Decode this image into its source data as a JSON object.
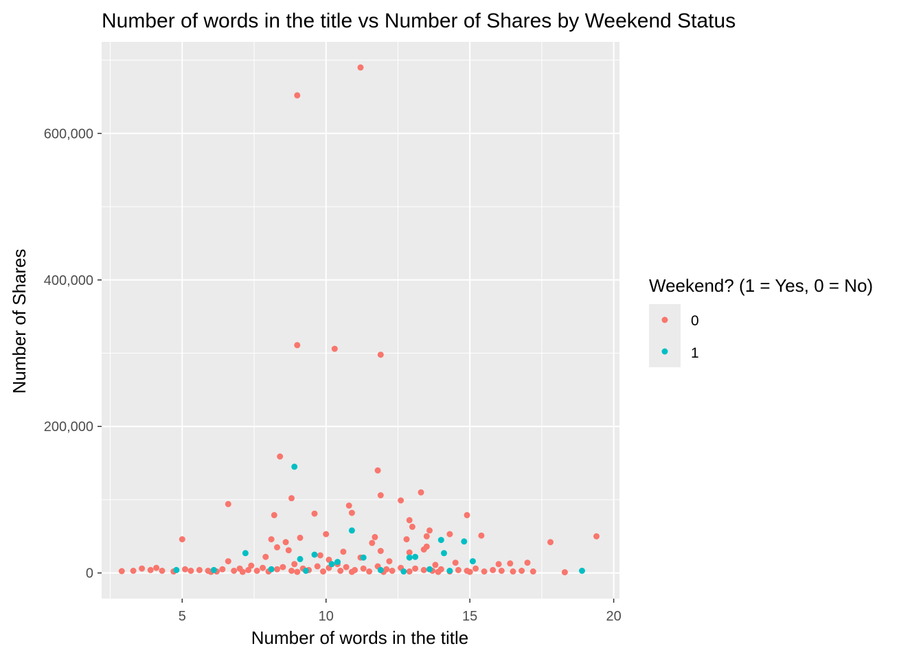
{
  "chart_data": {
    "type": "scatter",
    "title": "Number of words in the title vs Number of Shares by Weekend Status",
    "xlabel": "Number of words in the title",
    "ylabel": "Number of Shares",
    "xlim": [
      2.2,
      20.2
    ],
    "ylim": [
      -35000,
      725000
    ],
    "x_ticks": [
      5,
      10,
      15,
      20
    ],
    "x_tick_labels": [
      "5",
      "10",
      "15",
      "20"
    ],
    "y_ticks": [
      0,
      200000,
      400000,
      600000
    ],
    "y_tick_labels": [
      "0",
      "200,000",
      "400,000",
      "600,000"
    ],
    "grid": true,
    "legend": {
      "title": "Weekend? (1 = Yes, 0 = No)",
      "placement": "right",
      "entries": [
        {
          "label": "0",
          "color": "#F8766D"
        },
        {
          "label": "1",
          "color": "#00BFC4"
        }
      ]
    },
    "series": [
      {
        "name": "0",
        "color": "#F8766D",
        "points": [
          [
            11.2,
            690000
          ],
          [
            9.0,
            652000
          ],
          [
            9.0,
            311000
          ],
          [
            10.3,
            306000
          ],
          [
            11.9,
            298000
          ],
          [
            8.4,
            159000
          ],
          [
            11.8,
            140000
          ],
          [
            13.3,
            110000
          ],
          [
            11.9,
            106000
          ],
          [
            8.8,
            102000
          ],
          [
            12.6,
            99000
          ],
          [
            6.6,
            94000
          ],
          [
            10.8,
            92000
          ],
          [
            10.9,
            82000
          ],
          [
            9.6,
            81000
          ],
          [
            8.2,
            79000
          ],
          [
            14.9,
            79000
          ],
          [
            12.9,
            72000
          ],
          [
            13.0,
            63000
          ],
          [
            13.6,
            58000
          ],
          [
            10.0,
            53000
          ],
          [
            14.3,
            53000
          ],
          [
            15.4,
            51000
          ],
          [
            19.4,
            50000
          ],
          [
            13.5,
            50000
          ],
          [
            11.7,
            49000
          ],
          [
            9.1,
            48000
          ],
          [
            5.0,
            46000
          ],
          [
            8.1,
            46000
          ],
          [
            12.8,
            46000
          ],
          [
            17.8,
            42000
          ],
          [
            8.6,
            42000
          ],
          [
            11.6,
            41000
          ],
          [
            13.5,
            36000
          ],
          [
            8.3,
            35000
          ],
          [
            13.4,
            32000
          ],
          [
            11.9,
            30000
          ],
          [
            10.6,
            29000
          ],
          [
            12.9,
            28000
          ],
          [
            8.7,
            31000
          ],
          [
            7.9,
            22000
          ],
          [
            9.8,
            24000
          ],
          [
            10.1,
            18000
          ],
          [
            11.2,
            21000
          ],
          [
            12.2,
            16000
          ],
          [
            14.5,
            14000
          ],
          [
            16.0,
            12000
          ],
          [
            16.4,
            13000
          ],
          [
            17.0,
            14000
          ],
          [
            6.6,
            16000
          ],
          [
            7.4,
            10000
          ],
          [
            8.9,
            12000
          ],
          [
            10.4,
            12000
          ],
          [
            13.8,
            11000
          ],
          [
            2.9,
            2500
          ],
          [
            3.3,
            3000
          ],
          [
            3.6,
            6000
          ],
          [
            3.9,
            4000
          ],
          [
            4.1,
            7000
          ],
          [
            4.3,
            3000
          ],
          [
            4.7,
            2000
          ],
          [
            5.1,
            5000
          ],
          [
            5.3,
            3000
          ],
          [
            5.6,
            4000
          ],
          [
            5.9,
            3000
          ],
          [
            6.2,
            2000
          ],
          [
            6.4,
            5000
          ],
          [
            6.8,
            3000
          ],
          [
            7.0,
            6000
          ],
          [
            7.3,
            4000
          ],
          [
            7.6,
            3000
          ],
          [
            7.8,
            7000
          ],
          [
            8.0,
            2000
          ],
          [
            8.3,
            5000
          ],
          [
            8.5,
            8000
          ],
          [
            8.8,
            3000
          ],
          [
            9.2,
            6000
          ],
          [
            9.4,
            4000
          ],
          [
            9.7,
            9000
          ],
          [
            9.9,
            2000
          ],
          [
            10.1,
            7000
          ],
          [
            10.5,
            3000
          ],
          [
            10.7,
            8000
          ],
          [
            11.0,
            4000
          ],
          [
            11.3,
            6000
          ],
          [
            11.5,
            2000
          ],
          [
            11.8,
            9000
          ],
          [
            12.1,
            5000
          ],
          [
            12.3,
            3000
          ],
          [
            12.6,
            7000
          ],
          [
            12.9,
            2000
          ],
          [
            13.1,
            6000
          ],
          [
            13.4,
            4000
          ],
          [
            13.7,
            3000
          ],
          [
            14.0,
            5000
          ],
          [
            14.3,
            2000
          ],
          [
            14.6,
            4000
          ],
          [
            14.9,
            3000
          ],
          [
            15.2,
            6000
          ],
          [
            15.5,
            2000
          ],
          [
            15.8,
            4000
          ],
          [
            16.1,
            3000
          ],
          [
            16.5,
            2000
          ],
          [
            16.8,
            3000
          ],
          [
            17.2,
            2000
          ],
          [
            18.3,
            1000
          ],
          [
            6.0,
            1500
          ],
          [
            7.1,
            1500
          ],
          [
            9.0,
            1500
          ],
          [
            10.9,
            1500
          ],
          [
            12.0,
            1500
          ],
          [
            13.9,
            1500
          ],
          [
            15.0,
            1500
          ]
        ]
      },
      {
        "name": "1",
        "color": "#00BFC4",
        "points": [
          [
            8.9,
            145000
          ],
          [
            10.9,
            58000
          ],
          [
            14.0,
            45000
          ],
          [
            14.8,
            43000
          ],
          [
            7.2,
            27000
          ],
          [
            14.1,
            27000
          ],
          [
            9.6,
            25000
          ],
          [
            13.1,
            22000
          ],
          [
            12.9,
            21000
          ],
          [
            11.3,
            21000
          ],
          [
            9.1,
            19000
          ],
          [
            15.1,
            16000
          ],
          [
            10.4,
            15000
          ],
          [
            10.2,
            12000
          ],
          [
            18.9,
            3000
          ],
          [
            12.7,
            2000
          ],
          [
            6.1,
            4000
          ],
          [
            4.8,
            4000
          ],
          [
            8.1,
            5000
          ],
          [
            9.3,
            3000
          ],
          [
            11.9,
            4000
          ],
          [
            13.6,
            5000
          ],
          [
            14.3,
            3000
          ]
        ]
      }
    ]
  }
}
